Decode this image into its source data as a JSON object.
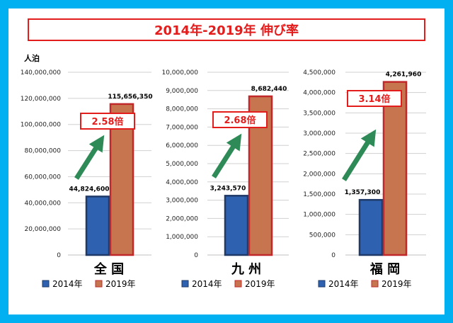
{
  "title": "2014年-2019年 伸び率",
  "unit_label": "人泊",
  "colors": {
    "frame": "#00b0f0",
    "title_border": "#e31c1c",
    "ratio_text": "#e31c1c",
    "bar_2014": "#2e62b0",
    "bar_2014_border": "#1f3a68",
    "bar_2019": "#c7754e",
    "bar_2019_border": "#c0282a",
    "arrow": "#2e8b57",
    "gridline": "#d0d0d0"
  },
  "legend": [
    "2014年",
    "2019年"
  ],
  "chart_data": [
    {
      "type": "bar",
      "category_label": "全 国",
      "series": [
        {
          "name": "2014年",
          "values": [
            44824600
          ]
        },
        {
          "name": "2019年",
          "values": [
            115656350
          ]
        }
      ],
      "value_labels": [
        "44,824,600",
        "115,656,350"
      ],
      "growth_label": "2.58倍",
      "ylim": [
        0,
        140000000
      ],
      "yticks": [
        "0",
        "20,000,000",
        "40,000,000",
        "60,000,000",
        "80,000,000",
        "100,000,000",
        "120,000,000",
        "140,000,000"
      ],
      "grid": true
    },
    {
      "type": "bar",
      "category_label": "九 州",
      "series": [
        {
          "name": "2014年",
          "values": [
            3243570
          ]
        },
        {
          "name": "2019年",
          "values": [
            8682440
          ]
        }
      ],
      "value_labels": [
        "3,243,570",
        "8,682,440"
      ],
      "growth_label": "2.68倍",
      "ylim": [
        0,
        10000000
      ],
      "yticks": [
        "0",
        "1,000,000",
        "2,000,000",
        "3,000,000",
        "4,000,000",
        "5,000,000",
        "6,000,000",
        "7,000,000",
        "8,000,000",
        "9,000,000",
        "10,000,000"
      ],
      "grid": true
    },
    {
      "type": "bar",
      "category_label": "福 岡",
      "series": [
        {
          "name": "2014年",
          "values": [
            1357300
          ]
        },
        {
          "name": "2019年",
          "values": [
            4261960
          ]
        }
      ],
      "value_labels": [
        "1,357,300",
        "4,261,960"
      ],
      "growth_label": "3.14倍",
      "ylim": [
        0,
        4500000
      ],
      "yticks": [
        "0",
        "500,000",
        "1,000,000",
        "1,500,000",
        "2,000,000",
        "2,500,000",
        "3,000,000",
        "3,500,000",
        "4,000,000",
        "4,500,000"
      ],
      "grid": true
    }
  ]
}
